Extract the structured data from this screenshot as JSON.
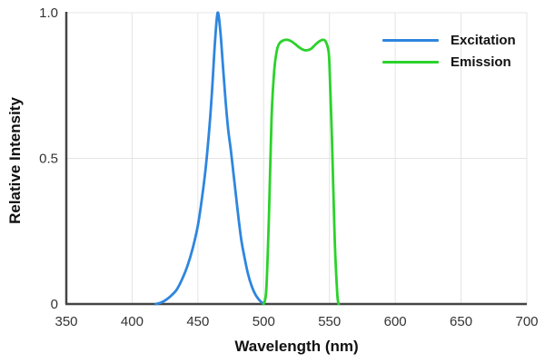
{
  "page": {
    "background": "#ffffff"
  },
  "chart_data": {
    "type": "line",
    "title": "",
    "xlabel": "Wavelength (nm)",
    "ylabel": "Relative Intensity",
    "xlim": [
      350,
      700
    ],
    "ylim": [
      0,
      1
    ],
    "xticks": [
      350,
      400,
      450,
      500,
      550,
      600,
      650,
      700
    ],
    "xtick_labels": [
      "350",
      "400",
      "450",
      "500",
      "550",
      "600",
      "650",
      "700"
    ],
    "yticks": [
      0,
      0.5,
      1
    ],
    "ytick_labels": [
      "0",
      "0.5",
      "1.0"
    ],
    "grid": true,
    "grid_color": "#e4e4e4",
    "axis_color": "#454545",
    "tick_label_color": "#333333",
    "legend_position": "top-right",
    "series": [
      {
        "name": "Excitation",
        "color": "#2E86DE",
        "x": [
          418,
          422,
          426,
          430,
          434,
          438,
          442,
          446,
          450,
          453,
          456,
          459,
          461,
          463,
          465,
          467,
          469,
          471,
          473,
          475,
          477,
          479,
          481,
          483,
          485,
          488,
          491,
          494,
          497,
          500
        ],
        "y": [
          0,
          0.005,
          0.015,
          0.03,
          0.05,
          0.085,
          0.13,
          0.19,
          0.27,
          0.36,
          0.47,
          0.62,
          0.75,
          0.9,
          1.0,
          0.94,
          0.82,
          0.7,
          0.6,
          0.53,
          0.45,
          0.37,
          0.29,
          0.22,
          0.17,
          0.105,
          0.06,
          0.03,
          0.012,
          0
        ]
      },
      {
        "name": "Emission",
        "color": "#2BD22B",
        "x": [
          500,
          502,
          504,
          506,
          508,
          510,
          512,
          515,
          518,
          521,
          524,
          527,
          530,
          533,
          536,
          539,
          542,
          545,
          547,
          549,
          550,
          552,
          554,
          556,
          557
        ],
        "y": [
          0,
          0.05,
          0.3,
          0.64,
          0.8,
          0.87,
          0.895,
          0.905,
          0.907,
          0.902,
          0.892,
          0.881,
          0.873,
          0.871,
          0.876,
          0.889,
          0.901,
          0.907,
          0.902,
          0.875,
          0.82,
          0.55,
          0.22,
          0.03,
          0
        ]
      }
    ]
  }
}
